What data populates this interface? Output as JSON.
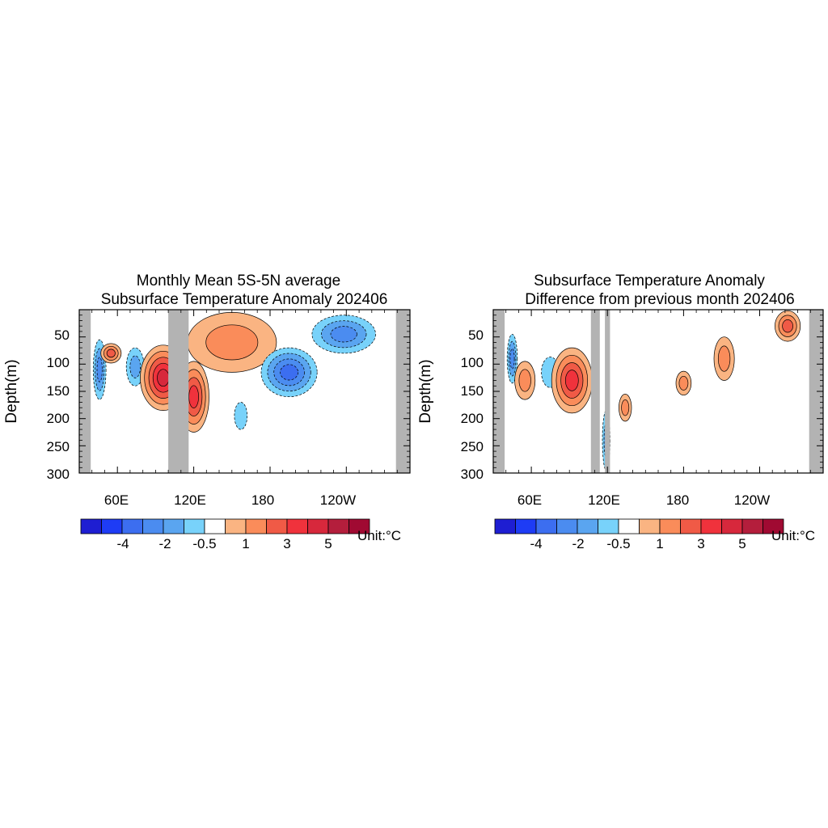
{
  "colorbar": {
    "colors": [
      "#1e1ed2",
      "#1e3cf5",
      "#3c6ef0",
      "#4b8cf0",
      "#5aa5f0",
      "#78d2fa",
      "#ffffff",
      "#fab482",
      "#fa8c5a",
      "#f05a46",
      "#f0323c",
      "#d7283c",
      "#b41e3c",
      "#a00a32"
    ],
    "tick_labels": [
      "-4",
      "-2",
      "-0.5",
      "1",
      "3",
      "5"
    ],
    "unit_label": "Unit:°C"
  },
  "land_color": "#b3b3b3",
  "panels": [
    {
      "title_line1": "Monthly Mean 5S-5N average",
      "title_line2": "Subsurface Temperature Anomaly 202406",
      "ylabel": "Depth(m)",
      "x_tick_labels": [
        "60E",
        "120E",
        "180",
        "120W"
      ],
      "y_tick_labels": [
        "50",
        "100",
        "150",
        "200",
        "250",
        "300"
      ]
    },
    {
      "title_line1": "Subsurface Temperature Anomaly",
      "title_line2": "Difference from previous month 202406",
      "ylabel": "Depth(m)",
      "x_tick_labels": [
        "60E",
        "120E",
        "180",
        "120W"
      ],
      "y_tick_labels": [
        "50",
        "100",
        "150",
        "200",
        "250",
        "300"
      ]
    }
  ],
  "chart_data": [
    {
      "type": "heatmap",
      "title": "Monthly Mean 5S-5N average Subsurface Temperature Anomaly 202406",
      "xlabel": "",
      "ylabel": "Depth(m)",
      "x_range_deg_east": [
        30,
        290
      ],
      "ylim": [
        300,
        0
      ],
      "x_ticks": [
        60,
        120,
        180,
        240
      ],
      "y_ticks": [
        50,
        100,
        150,
        200,
        250,
        300
      ],
      "colorbar_levels": [
        -5,
        -4,
        -3,
        -2,
        -1,
        -0.5,
        0.5,
        1,
        2,
        3,
        4,
        5,
        6
      ],
      "unit": "°C",
      "land": [
        [
          30,
          39
        ],
        [
          100,
          116
        ],
        [
          279,
          290
        ]
      ],
      "features": [
        {
          "lon": 46,
          "depth": 110,
          "rx": 5,
          "ry": 55,
          "anom": -2.5
        },
        {
          "lon": 55,
          "depth": 80,
          "rx": 8,
          "ry": 18,
          "anom": 2
        },
        {
          "lon": 74,
          "depth": 105,
          "rx": 7,
          "ry": 35,
          "anom": -1.5
        },
        {
          "lon": 96,
          "depth": 125,
          "rx": 18,
          "ry": 60,
          "anom": 4.5
        },
        {
          "lon": 120,
          "depth": 160,
          "rx": 12,
          "ry": 65,
          "anom": 3.5
        },
        {
          "lon": 150,
          "depth": 60,
          "rx": 35,
          "ry": 55,
          "anom": 1.5
        },
        {
          "lon": 195,
          "depth": 115,
          "rx": 22,
          "ry": 45,
          "anom": -3.5
        },
        {
          "lon": 238,
          "depth": 45,
          "rx": 25,
          "ry": 35,
          "anom": -2.5
        },
        {
          "lon": 157,
          "depth": 195,
          "rx": 5,
          "ry": 25,
          "anom": -0.8
        }
      ]
    },
    {
      "type": "heatmap",
      "title": "Subsurface Temperature Anomaly Difference from previous month 202406",
      "xlabel": "",
      "ylabel": "Depth(m)",
      "x_range_deg_east": [
        30,
        290
      ],
      "ylim": [
        300,
        0
      ],
      "x_ticks": [
        60,
        120,
        180,
        240
      ],
      "y_ticks": [
        50,
        100,
        150,
        200,
        250,
        300
      ],
      "colorbar_levels": [
        -5,
        -4,
        -3,
        -2,
        -1,
        -0.5,
        0.5,
        1,
        2,
        3,
        4,
        5,
        6
      ],
      "unit": "°C",
      "land": [
        [
          30,
          39
        ],
        [
          107,
          114
        ],
        [
          118,
          122
        ],
        [
          279,
          290
        ]
      ],
      "features": [
        {
          "lon": 45,
          "depth": 90,
          "rx": 4,
          "ry": 45,
          "anom": -2
        },
        {
          "lon": 55,
          "depth": 130,
          "rx": 8,
          "ry": 35,
          "anom": 1
        },
        {
          "lon": 75,
          "depth": 115,
          "rx": 7,
          "ry": 28,
          "anom": -0.8
        },
        {
          "lon": 92,
          "depth": 130,
          "rx": 16,
          "ry": 60,
          "anom": 3.5
        },
        {
          "lon": 119,
          "depth": 240,
          "rx": 3,
          "ry": 55,
          "anom": -1.5
        },
        {
          "lon": 212,
          "depth": 90,
          "rx": 8,
          "ry": 40,
          "anom": 1.5
        },
        {
          "lon": 262,
          "depth": 30,
          "rx": 10,
          "ry": 28,
          "anom": 2
        },
        {
          "lon": 180,
          "depth": 135,
          "rx": 6,
          "ry": 22,
          "anom": 1
        },
        {
          "lon": 134,
          "depth": 180,
          "rx": 5,
          "ry": 25,
          "anom": 1
        }
      ]
    }
  ]
}
